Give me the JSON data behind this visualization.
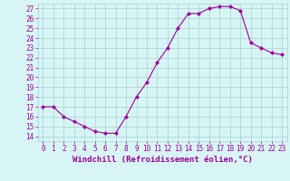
{
  "x": [
    0,
    1,
    2,
    3,
    4,
    5,
    6,
    7,
    8,
    9,
    10,
    11,
    12,
    13,
    14,
    15,
    16,
    17,
    18,
    19,
    20,
    21,
    22,
    23
  ],
  "y": [
    17,
    17,
    16,
    15.5,
    15,
    14.5,
    14.3,
    14.3,
    16,
    18,
    19.5,
    21.5,
    23,
    25,
    26.5,
    26.5,
    27,
    27.2,
    27.2,
    26.8,
    23.5,
    23,
    22.5,
    22.3
  ],
  "line_color": "#990099",
  "marker": "D",
  "marker_size": 2,
  "bg_color": "#d8f5f5",
  "grid_color": "#aacfcf",
  "xlabel": "Windchill (Refroidissement éolien,°C)",
  "xlabel_color": "#990099",
  "tick_color": "#990099",
  "ylim": [
    13.5,
    27.5
  ],
  "yticks": [
    14,
    15,
    16,
    17,
    18,
    19,
    20,
    21,
    22,
    23,
    24,
    25,
    26,
    27
  ],
  "xlim": [
    -0.5,
    23.5
  ],
  "xticks": [
    0,
    1,
    2,
    3,
    4,
    5,
    6,
    7,
    8,
    9,
    10,
    11,
    12,
    13,
    14,
    15,
    16,
    17,
    18,
    19,
    20,
    21,
    22,
    23
  ],
  "axis_fontsize": 5.5,
  "xlabel_fontsize": 6.5
}
